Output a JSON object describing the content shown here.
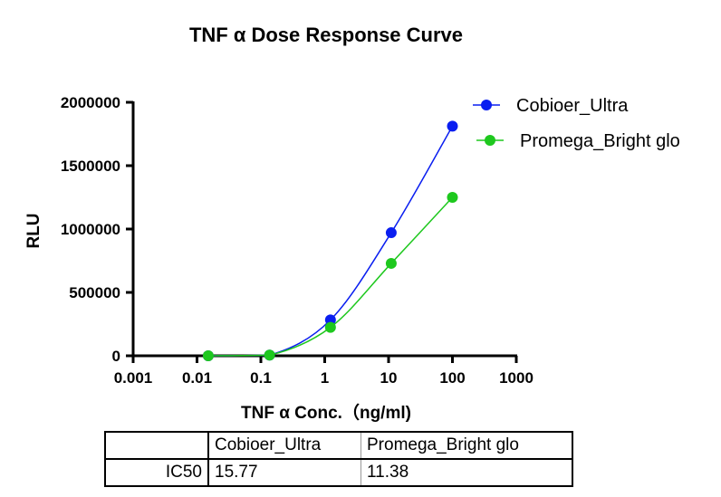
{
  "chart_data": {
    "type": "scatter",
    "title": "TNF α Dose Response Curve",
    "xlabel": "TNF α Conc.（ng/ml)",
    "ylabel": "RLU",
    "xscale": "log",
    "xlim": [
      0.001,
      1000
    ],
    "ylim": [
      0,
      2000000
    ],
    "xticks": [
      "0.001",
      "0.01",
      "0.1",
      "1",
      "10",
      "100",
      "1000"
    ],
    "yticks": [
      "0",
      "500000",
      "1000000",
      "1500000",
      "2000000"
    ],
    "grid": false,
    "legend_position": "top-right",
    "series": [
      {
        "name": "Cobioer_Ultra",
        "color": "#0a1ef0",
        "x": [
          0.015,
          0.137,
          1.23,
          11,
          100
        ],
        "y": [
          0,
          5000,
          283000,
          971000,
          1812000
        ]
      },
      {
        "name": "Promega_Bright glo",
        "color": "#1ec81e",
        "x": [
          0.015,
          0.137,
          1.23,
          11,
          100
        ],
        "y": [
          0,
          5000,
          224000,
          729000,
          1250000
        ]
      }
    ],
    "fit_curve": "sigmoidal"
  },
  "table": {
    "header": [
      "",
      "Cobioer_Ultra",
      "Promega_Bright glo"
    ],
    "rows": [
      [
        "IC50",
        "15.77",
        "11.38"
      ]
    ]
  }
}
